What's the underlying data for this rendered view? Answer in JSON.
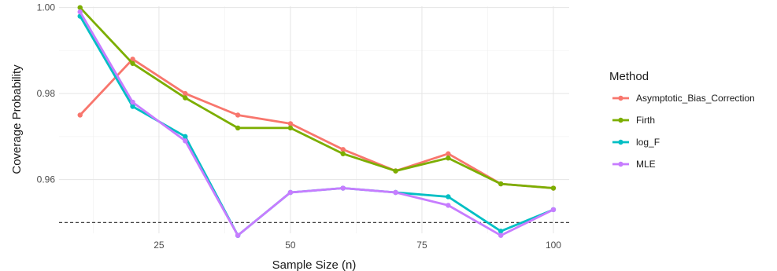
{
  "chart_data": {
    "type": "line",
    "xlabel": "Sample Size (n)",
    "ylabel": "Coverage Probability",
    "xlim": [
      6,
      103
    ],
    "ylim": [
      0.9475,
      1.0003
    ],
    "x_ticks": [
      25,
      50,
      75,
      100
    ],
    "x_tick_labels": [
      "25",
      "50",
      "75",
      "100"
    ],
    "y_ticks": [
      0.96,
      0.98,
      1.0
    ],
    "y_tick_labels": [
      "0.96",
      "0.98",
      "1.00"
    ],
    "grid": true,
    "reference_line": {
      "y": 0.95,
      "style": "dashed"
    },
    "legend": {
      "title": "Method",
      "position": "right"
    },
    "x": [
      10,
      20,
      30,
      40,
      50,
      60,
      70,
      80,
      90,
      100
    ],
    "series": [
      {
        "name": "Asymptotic_Bias_Correction",
        "color": "#F8766D",
        "values": [
          0.975,
          0.988,
          0.98,
          0.975,
          0.973,
          0.967,
          0.962,
          0.966,
          0.959,
          0.958
        ]
      },
      {
        "name": "Firth",
        "color": "#7CAE00",
        "values": [
          1.0,
          0.987,
          0.979,
          0.972,
          0.972,
          0.966,
          0.962,
          0.965,
          0.959,
          0.958
        ]
      },
      {
        "name": "log_F",
        "color": "#00BFC4",
        "values": [
          0.998,
          0.977,
          0.97,
          0.947,
          0.957,
          0.958,
          0.957,
          0.956,
          0.948,
          0.953
        ]
      },
      {
        "name": "MLE",
        "color": "#C77CFF",
        "values": [
          0.999,
          0.978,
          0.969,
          0.947,
          0.957,
          0.958,
          0.957,
          0.954,
          0.947,
          0.953
        ]
      }
    ]
  }
}
